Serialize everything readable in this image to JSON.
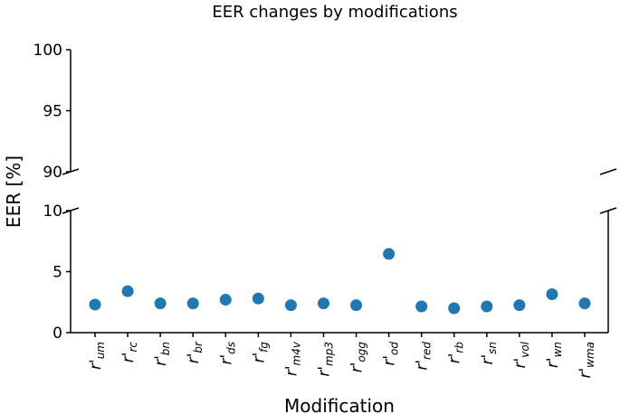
{
  "chart_data": {
    "type": "scatter",
    "title": "EER changes by modifications",
    "xlabel": "Modification",
    "ylabel": "EER [%]",
    "broken_axis": true,
    "upper_ylim": [
      90,
      100
    ],
    "lower_ylim": [
      0,
      10
    ],
    "upper_yticks": [
      90,
      95,
      100
    ],
    "lower_yticks": [
      0,
      5,
      10
    ],
    "marker_color": "#1f77b4",
    "grid": false,
    "categories": [
      {
        "base": "r'",
        "sub": "um"
      },
      {
        "base": "r'",
        "sub": "rc"
      },
      {
        "base": "r'",
        "sub": "bn"
      },
      {
        "base": "r'",
        "sub": "br"
      },
      {
        "base": "r'",
        "sub": "ds"
      },
      {
        "base": "r'",
        "sub": "fg"
      },
      {
        "base": "r'",
        "sub": "m4v"
      },
      {
        "base": "r'",
        "sub": "mp3"
      },
      {
        "base": "r'",
        "sub": "ogg"
      },
      {
        "base": "r'",
        "sub": "od"
      },
      {
        "base": "r'",
        "sub": "red"
      },
      {
        "base": "r'",
        "sub": "rb"
      },
      {
        "base": "r'",
        "sub": "sn"
      },
      {
        "base": "r'",
        "sub": "vol"
      },
      {
        "base": "r'",
        "sub": "wn"
      },
      {
        "base": "r'",
        "sub": "wma"
      }
    ],
    "values": [
      2.3,
      3.4,
      2.4,
      2.4,
      2.7,
      2.8,
      2.25,
      2.4,
      2.25,
      6.45,
      2.15,
      2.0,
      2.15,
      2.25,
      3.15,
      2.4
    ]
  }
}
